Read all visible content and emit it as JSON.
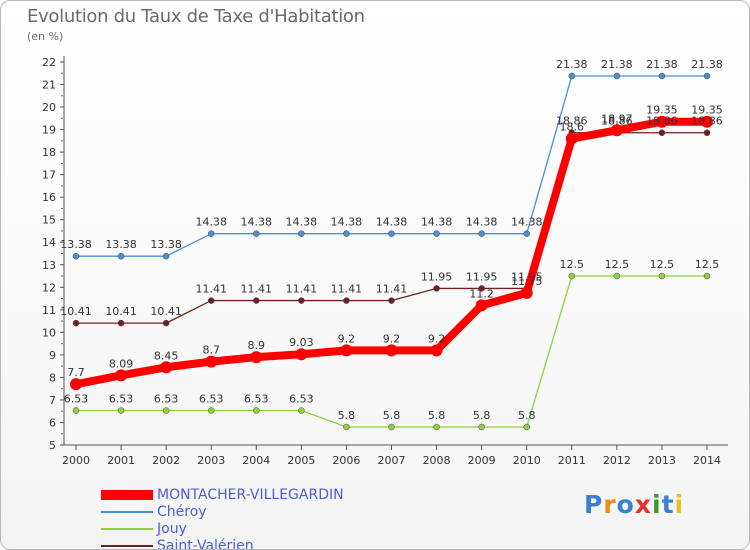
{
  "header": {
    "title": "Evolution du Taux de Taxe d'Habitation",
    "subtitle": "(en %)"
  },
  "logo": {
    "text": "Proxiti"
  },
  "chart_data": {
    "type": "line",
    "title": "Evolution du Taux de Taxe d'Habitation",
    "ylabel": "(en %)",
    "xlabel": "",
    "ylim": [
      5,
      22
    ],
    "grid": false,
    "legend_position": "bottom-left",
    "x": [
      "2000",
      "2001",
      "2002",
      "2003",
      "2004",
      "2005",
      "2006",
      "2007",
      "2008",
      "2009",
      "2010",
      "2011",
      "2012",
      "2013",
      "2014"
    ],
    "yticks": [
      "5",
      "6",
      "7",
      "8",
      "9",
      "10",
      "11",
      "12",
      "13",
      "14",
      "15",
      "16",
      "17",
      "18",
      "19",
      "20",
      "21",
      "22"
    ],
    "series": [
      {
        "name": "MONTACHER-VILLEGARDIN",
        "color": "#ff0000",
        "values": [
          7.7,
          8.09,
          8.45,
          8.7,
          8.9,
          9.03,
          9.2,
          9.2,
          9.2,
          11.2,
          11.75,
          18.6,
          18.97,
          19.35,
          19.35
        ],
        "labels": [
          "7.7",
          "8.09",
          "8.45",
          "8.7",
          "8.9",
          "9.03",
          "9.2",
          "9.2",
          "9.2",
          "11.2",
          "11.75",
          "18.6",
          "18.97",
          "19.35",
          "19.35"
        ]
      },
      {
        "name": "Chéroy",
        "color": "#4a8fd0",
        "values": [
          13.38,
          13.38,
          13.38,
          14.38,
          14.38,
          14.38,
          14.38,
          14.38,
          14.38,
          14.38,
          14.38,
          21.38,
          21.38,
          21.38,
          21.38
        ],
        "labels": [
          "13.38",
          "13.38",
          "13.38",
          "14.38",
          "14.38",
          "14.38",
          "14.38",
          "14.38",
          "14.38",
          "14.38",
          "14.38",
          "21.38",
          "21.38",
          "21.38",
          "21.38"
        ]
      },
      {
        "name": "Jouy",
        "color": "#8fd040",
        "values": [
          6.53,
          6.53,
          6.53,
          6.53,
          6.53,
          6.53,
          5.8,
          5.8,
          5.8,
          5.8,
          5.8,
          12.5,
          12.5,
          12.5,
          12.5
        ],
        "labels": [
          "6.53",
          "6.53",
          "6.53",
          "6.53",
          "6.53",
          "6.53",
          "5.8",
          "5.8",
          "5.8",
          "5.8",
          "5.8",
          "12.5",
          "12.5",
          "12.5",
          "12.5"
        ]
      },
      {
        "name": "Saint-Valérien",
        "color": "#702020",
        "values": [
          10.41,
          10.41,
          10.41,
          11.41,
          11.41,
          11.41,
          11.41,
          11.41,
          11.95,
          11.95,
          11.95,
          18.86,
          18.86,
          18.86,
          18.86
        ],
        "labels": [
          "10.41",
          "10.41",
          "10.41",
          "11.41",
          "11.41",
          "11.41",
          "11.41",
          "11.41",
          "11.95",
          "11.95",
          "11.95",
          "18.86",
          "18.86",
          "18.86",
          "18.86"
        ]
      }
    ]
  }
}
